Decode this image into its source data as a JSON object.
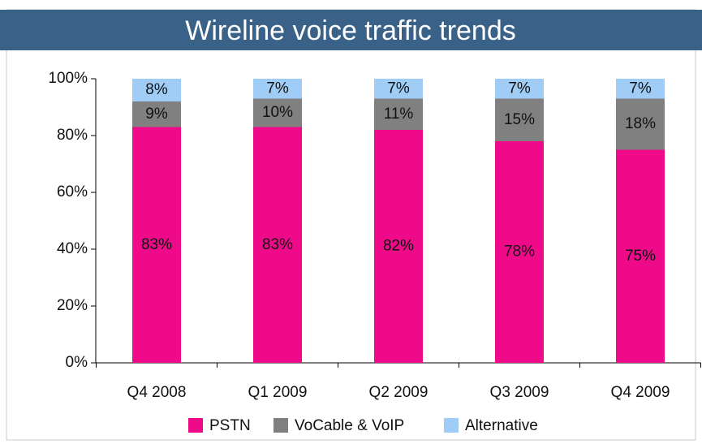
{
  "chart_data": {
    "type": "stacked_bar",
    "title": "Wireline voice traffic trends",
    "categories": [
      "Q4 2008",
      "Q1 2009",
      "Q2 2009",
      "Q3 2009",
      "Q4 2009"
    ],
    "series": [
      {
        "name": "PSTN",
        "color": "#ee0a88",
        "values": [
          83,
          83,
          82,
          78,
          75
        ],
        "value_labels": [
          "83%",
          "83%",
          "82%",
          "78%",
          "75%"
        ]
      },
      {
        "name": "VoCable & VoIP",
        "color": "#808080",
        "values": [
          9,
          10,
          11,
          15,
          18
        ],
        "value_labels": [
          "9%",
          "10%",
          "11%",
          "15%",
          "18%"
        ]
      },
      {
        "name": "Alternative",
        "color": "#9fcdf5",
        "values": [
          8,
          7,
          7,
          7,
          7
        ],
        "value_labels": [
          "8%",
          "7%",
          "7%",
          "7%",
          "7%"
        ]
      }
    ],
    "ylim": [
      0,
      100
    ],
    "yticks": [
      {
        "value": 0,
        "label": "0%"
      },
      {
        "value": 20,
        "label": "20%"
      },
      {
        "value": 40,
        "label": "40%"
      },
      {
        "value": 60,
        "label": "60%"
      },
      {
        "value": 80,
        "label": "80%"
      },
      {
        "value": 100,
        "label": "100%"
      }
    ],
    "legend": "bottom"
  }
}
